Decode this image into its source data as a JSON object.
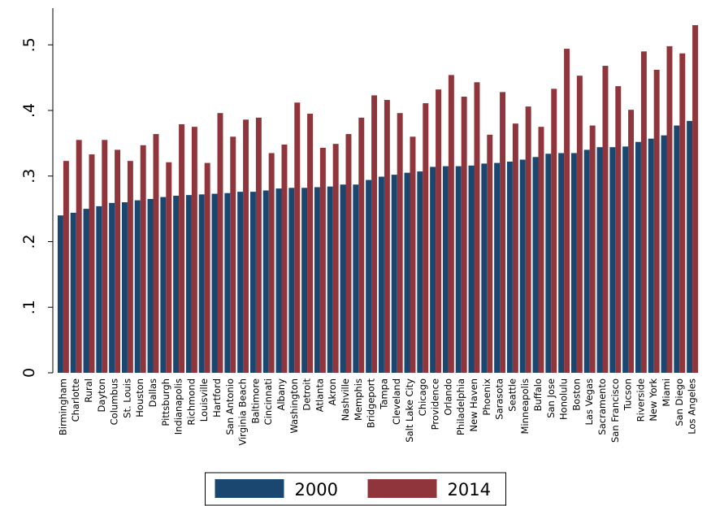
{
  "chart_data": {
    "type": "bar",
    "categories": [
      "Birmingham",
      "Charlotte",
      "Rural",
      "Dayton",
      "Columbus",
      "St. Louis",
      "Houston",
      "Dallas",
      "Pittsburgh",
      "Indianapolis",
      "Richmond",
      "Louisville",
      "Hartford",
      "San Antonio",
      "Virginia Beach",
      "Baltimore",
      "Cincinnati",
      "Albany",
      "Washington",
      "Detroit",
      "Atlanta",
      "Akron",
      "Nashville",
      "Memphis",
      "Bridgeport",
      "Tampa",
      "Cleveland",
      "Salt Lake City",
      "Chicago",
      "Providence",
      "Orlando",
      "Philadelphia",
      "New Haven",
      "Phoenix",
      "Sarasota",
      "Seattle",
      "Minneapolis",
      "Buffalo",
      "San Jose",
      "Honolulu",
      "Boston",
      "Las Vegas",
      "Sacramento",
      "San Francisco",
      "Tucson",
      "Riverside",
      "New York",
      "Miami",
      "San Diego",
      "Los Angeles"
    ],
    "series": [
      {
        "name": "2000",
        "color": "#1a476f",
        "values": [
          0.24,
          0.244,
          0.25,
          0.254,
          0.259,
          0.26,
          0.263,
          0.265,
          0.268,
          0.27,
          0.271,
          0.272,
          0.273,
          0.274,
          0.276,
          0.276,
          0.278,
          0.281,
          0.282,
          0.282,
          0.283,
          0.284,
          0.287,
          0.287,
          0.294,
          0.299,
          0.302,
          0.305,
          0.307,
          0.314,
          0.315,
          0.315,
          0.316,
          0.319,
          0.32,
          0.322,
          0.325,
          0.329,
          0.334,
          0.335,
          0.335,
          0.34,
          0.344,
          0.344,
          0.345,
          0.352,
          0.357,
          0.362,
          0.377,
          0.384
        ]
      },
      {
        "name": "2014",
        "color": "#90353b",
        "values": [
          0.323,
          0.355,
          0.333,
          0.355,
          0.34,
          0.323,
          0.347,
          0.364,
          0.321,
          0.379,
          0.375,
          0.32,
          0.396,
          0.36,
          0.386,
          0.389,
          0.335,
          0.348,
          0.412,
          0.395,
          0.343,
          0.349,
          0.364,
          0.389,
          0.423,
          0.416,
          0.396,
          0.36,
          0.411,
          0.432,
          0.454,
          0.421,
          0.443,
          0.363,
          0.428,
          0.38,
          0.406,
          0.375,
          0.433,
          0.494,
          0.453,
          0.377,
          0.468,
          0.437,
          0.401,
          0.49,
          0.462,
          0.498,
          0.487,
          0.53
        ]
      }
    ],
    "ylim": [
      0,
      0.556
    ],
    "yticks": [
      0,
      {
        "value": 0.1,
        "label": ".1"
      },
      {
        "value": 0.2,
        "label": ".2"
      },
      {
        "value": 0.3,
        "label": ".3"
      },
      {
        "value": 0.4,
        "label": ".4"
      },
      {
        "value": 0.5,
        "label": ".5"
      }
    ],
    "legend": "bottom"
  }
}
